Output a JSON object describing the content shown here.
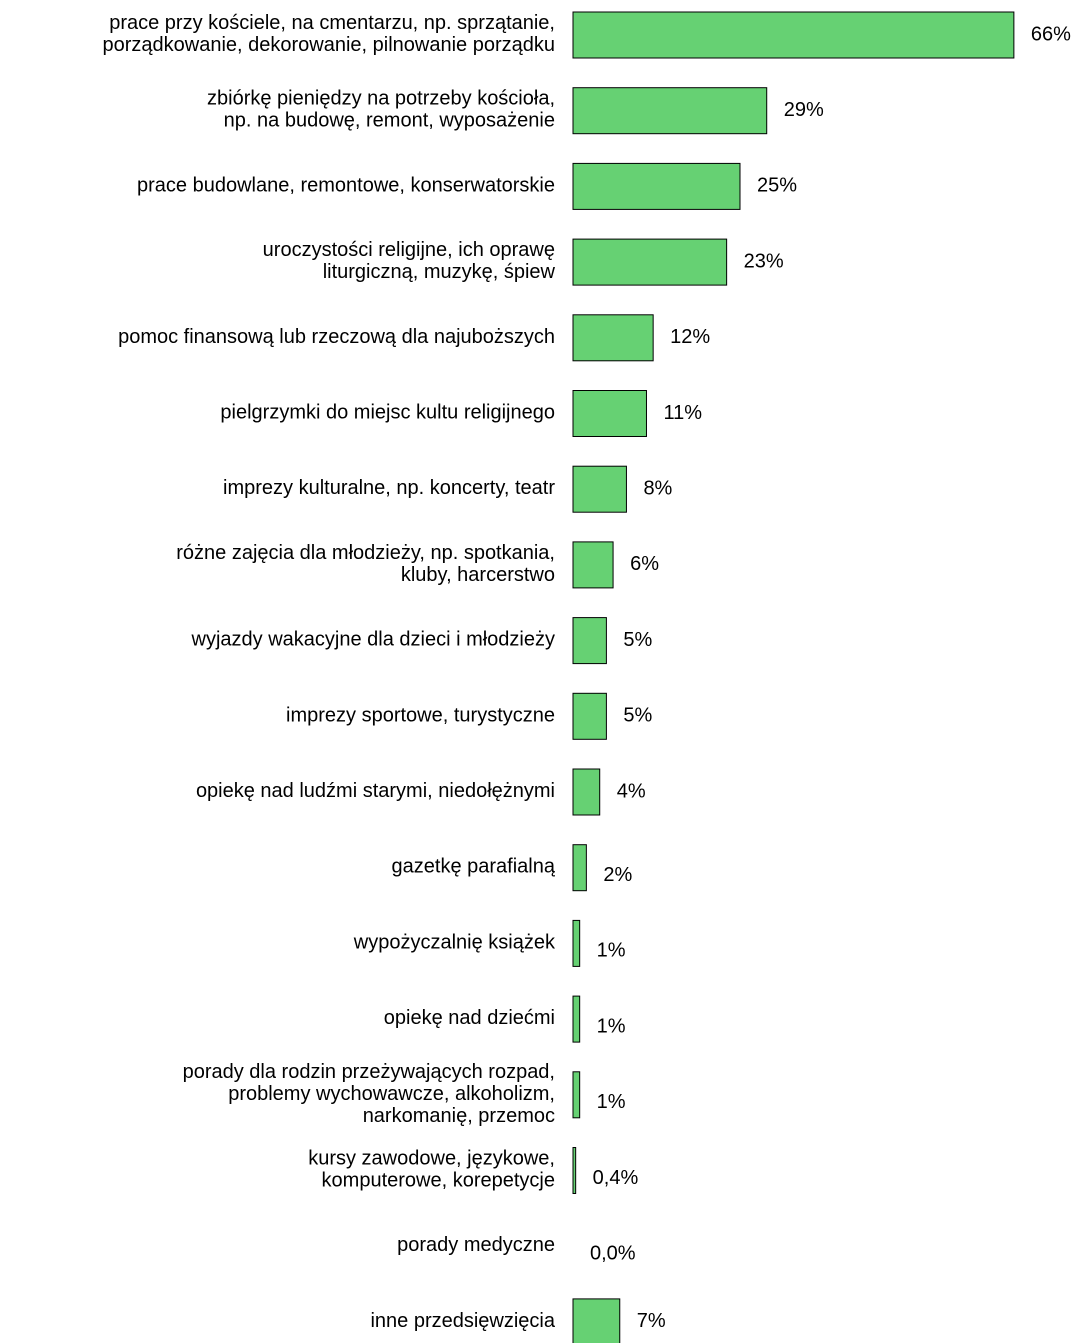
{
  "chart_data": {
    "type": "bar",
    "orientation": "horizontal",
    "color": "#66d173",
    "categories": [
      "prace przy kościele, na cmentarzu, np. sprzątanie,\nporządkowanie, dekorowanie, pilnowanie porządku",
      "zbiórkę pieniędzy na potrzeby kościoła,\nnp. na budowę, remont, wyposażenie",
      "prace budowlane, remontowe, konserwatorskie",
      "uroczystości religijne, ich oprawę\nliturgiczną, muzykę, śpiew",
      "pomoc finansową lub rzeczową dla najuboższych",
      "pielgrzymki do miejsc kultu religijnego",
      "imprezy kulturalne, np. koncerty, teatr",
      "różne zajęcia dla młodzieży, np. spotkania,\nkluby, harcerstwo",
      "wyjazdy wakacyjne dla dzieci i młodzieży",
      "imprezy sportowe, turystyczne",
      "opiekę nad ludźmi starymi, niedołężnymi",
      "gazetkę parafialną",
      "wypożyczalnię książek",
      "opiekę nad dziećmi",
      "porady dla rodzin przeżywających rozpad,\nproblemy wychowawcze, alkoholizm,\nnarkomanię, przemoc",
      "kursy zawodowe, językowe,\nkomputerowe, korepetycje",
      "porady medyczne",
      "inne przedsięwzięcia"
    ],
    "values": [
      66,
      29,
      25,
      23,
      12,
      11,
      8,
      6,
      5,
      5,
      4,
      2,
      1,
      1,
      1,
      0.4,
      0,
      7
    ],
    "value_labels": [
      "66%",
      "29%",
      "25%",
      "23%",
      "12%",
      "11%",
      "8%",
      "6%",
      "5%",
      "5%",
      "4%",
      "2%",
      "1%",
      "1%",
      "1%",
      "0,4%",
      "0,0%",
      "7%"
    ]
  }
}
